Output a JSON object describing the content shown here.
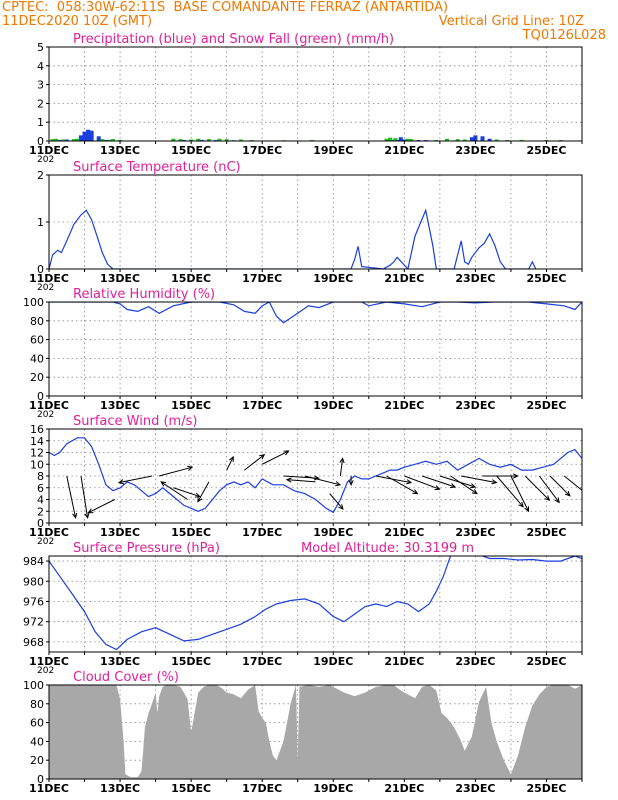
{
  "header": {
    "line1_left": "CPTEC:  058:30W-62:11S  BASE COMANDANTE FERRAZ (ANTARTIDA)",
    "line2_left": "11DEC2020 10Z (GMT)",
    "line2_right": "Vertical Grid Line: 10Z",
    "line3_right": "TQ0126L028"
  },
  "colors": {
    "header_orange": "#f07800",
    "title_magenta": "#e0209a",
    "series_blue": "#1a3fe0",
    "snow_green": "#19c019",
    "cloud_gray": "#a8a8a8",
    "grid": "#888888"
  },
  "chart_data": [
    {
      "id": "precip",
      "type": "bar",
      "title": "Precipitation (blue) and Snow Fall (green) (mm/h)",
      "ylim": [
        0,
        5
      ],
      "yticks": [
        0,
        1,
        2,
        3,
        4,
        5
      ],
      "xticks": [
        "11DEC",
        "13DEC",
        "15DEC",
        "17DEC",
        "19DEC",
        "21DEC",
        "23DEC",
        "25DEC"
      ],
      "x_first_label_extra": "202",
      "grid": true,
      "series": [
        {
          "name": "Precipitation",
          "color": "blue",
          "x": [
            0.3,
            0.5,
            0.9,
            1.0,
            1.1,
            1.2,
            1.4,
            1.6,
            3.8,
            4.3,
            4.7,
            5.2,
            9.7,
            9.8,
            9.9,
            10.0,
            10.4,
            10.6,
            11.9,
            12.0,
            12.2,
            12.4
          ],
          "values": [
            0.05,
            0.08,
            0.3,
            0.5,
            0.6,
            0.55,
            0.25,
            0.05,
            0.05,
            0.06,
            0.05,
            0.04,
            0.05,
            0.06,
            0.2,
            0.08,
            0.05,
            0.05,
            0.2,
            0.3,
            0.25,
            0.12
          ]
        },
        {
          "name": "Snow Fall",
          "color": "green",
          "x": [
            0.1,
            0.2,
            0.4,
            0.7,
            0.8,
            1.5,
            1.7,
            1.8,
            2.0,
            3.5,
            3.7,
            4.0,
            4.2,
            4.5,
            4.8,
            5.0,
            5.4,
            5.7,
            6.6,
            7.4,
            9.5,
            9.6,
            9.75,
            10.1,
            10.2,
            10.9,
            11.2,
            11.5,
            11.7,
            12.6,
            12.9,
            13.3,
            14.0,
            14.4
          ],
          "values": [
            0.1,
            0.12,
            0.08,
            0.1,
            0.12,
            0.1,
            0.06,
            0.1,
            0.06,
            0.12,
            0.1,
            0.08,
            0.12,
            0.1,
            0.12,
            0.1,
            0.08,
            0.05,
            0.04,
            0.05,
            0.12,
            0.18,
            0.15,
            0.12,
            0.1,
            0.05,
            0.12,
            0.1,
            0.08,
            0.08,
            0.05,
            0.06,
            0.05,
            0.05
          ]
        }
      ]
    },
    {
      "id": "temperature",
      "type": "line",
      "title": "Surface Temperature (nC)",
      "ylim": [
        0,
        2
      ],
      "yticks": [
        0,
        1,
        2
      ],
      "xticks": [
        "11DEC",
        "13DEC",
        "15DEC",
        "17DEC",
        "19DEC",
        "21DEC",
        "23DEC",
        "25DEC"
      ],
      "x_first_label_extra": "202",
      "grid": true,
      "series": [
        {
          "name": "Surface Temperature",
          "x": [
            0.0,
            0.1,
            0.25,
            0.35,
            0.5,
            0.7,
            0.9,
            1.05,
            1.2,
            1.35,
            1.5,
            1.65,
            1.8,
            8.5,
            8.6,
            8.7,
            8.8,
            9.4,
            9.6,
            9.7,
            9.8,
            10.1,
            10.3,
            10.6,
            10.8,
            10.9,
            11.0,
            11.1,
            11.4,
            11.6,
            11.7,
            11.8,
            11.9,
            12.1,
            12.25,
            12.4,
            12.55,
            12.7,
            12.85,
            13.5,
            13.6,
            13.7
          ],
          "y": [
            0.0,
            0.3,
            0.4,
            0.35,
            0.6,
            0.95,
            1.15,
            1.25,
            1.05,
            0.7,
            0.35,
            0.1,
            0.0,
            0.0,
            0.2,
            0.48,
            0.05,
            0.0,
            0.08,
            0.15,
            0.25,
            0.0,
            0.7,
            1.25,
            0.5,
            0.0,
            0.0,
            0.0,
            0.0,
            0.6,
            0.15,
            0.1,
            0.25,
            0.45,
            0.55,
            0.75,
            0.5,
            0.15,
            0.0,
            0.0,
            0.15,
            0.0
          ]
        }
      ]
    },
    {
      "id": "humidity",
      "type": "line",
      "title": "Relative Humidity (%)",
      "ylim": [
        0,
        100
      ],
      "yticks": [
        0,
        20,
        40,
        60,
        80,
        100
      ],
      "xticks": [
        "11DEC",
        "13DEC",
        "15DEC",
        "17DEC",
        "19DEC",
        "21DEC",
        "23DEC",
        "25DEC"
      ],
      "x_first_label_extra": "202",
      "grid": true,
      "series": [
        {
          "name": "Relative Humidity",
          "x": [
            0,
            1.8,
            2.0,
            2.2,
            2.5,
            2.8,
            3.1,
            3.5,
            4.0,
            4.8,
            5.2,
            5.5,
            5.8,
            6.0,
            6.2,
            6.4,
            6.6,
            7.0,
            7.3,
            7.6,
            8.0,
            8.5,
            8.8,
            9.0,
            9.5,
            10.0,
            10.5,
            11.0,
            11.5,
            12.0,
            12.5,
            13.0,
            13.5,
            14.0,
            14.5,
            14.8,
            15.0
          ],
          "y": [
            100,
            100,
            98,
            92,
            90,
            95,
            88,
            96,
            100,
            100,
            97,
            90,
            88,
            96,
            100,
            85,
            78,
            88,
            96,
            94,
            100,
            100,
            100,
            96,
            100,
            98,
            95,
            100,
            100,
            99,
            100,
            100,
            100,
            98,
            96,
            92,
            100
          ]
        }
      ]
    },
    {
      "id": "wind",
      "type": "line",
      "title": "Surface Wind (m/s)",
      "ylim": [
        0,
        16
      ],
      "yticks": [
        0,
        2,
        4,
        6,
        8,
        10,
        12,
        14,
        16
      ],
      "xticks": [
        "11DEC",
        "13DEC",
        "15DEC",
        "17DEC",
        "19DEC",
        "21DEC",
        "23DEC",
        "25DEC"
      ],
      "x_first_label_extra": "202",
      "grid": true,
      "series": [
        {
          "name": "Wind speed",
          "x": [
            0,
            0.15,
            0.3,
            0.5,
            0.8,
            1.0,
            1.2,
            1.4,
            1.6,
            1.8,
            2.0,
            2.2,
            2.4,
            2.6,
            2.8,
            3.0,
            3.2,
            3.4,
            3.6,
            3.8,
            4.0,
            4.2,
            4.4,
            4.6,
            4.8,
            5.0,
            5.2,
            5.4,
            5.6,
            5.8,
            6.0,
            6.3,
            6.6,
            6.9,
            7.2,
            7.5,
            7.8,
            8.0,
            8.2,
            8.4,
            8.6,
            8.8,
            9.0,
            9.2,
            9.4,
            9.6,
            9.8,
            10.0,
            10.3,
            10.6,
            10.9,
            11.2,
            11.5,
            11.8,
            12.1,
            12.4,
            12.7,
            13.0,
            13.3,
            13.6,
            13.9,
            14.2,
            14.4,
            14.6,
            14.8,
            15.0
          ],
          "y": [
            12,
            11.5,
            12,
            13.5,
            14.5,
            14.5,
            13,
            10,
            6.5,
            5.5,
            6,
            7,
            6.5,
            5.5,
            4.5,
            5,
            6,
            5,
            4,
            3,
            2.5,
            2,
            2.5,
            4,
            5.5,
            6.5,
            7,
            6.5,
            7,
            6,
            7.5,
            6.5,
            6.5,
            5.5,
            5,
            4,
            2.5,
            1.8,
            4,
            7,
            8,
            7.5,
            7.5,
            8,
            8.5,
            9,
            9,
            9.5,
            10,
            10.5,
            10,
            10.5,
            9,
            10,
            11,
            10,
            9.5,
            10,
            9,
            9,
            9.5,
            10,
            11,
            12,
            12.5,
            11
          ]
        },
        {
          "name": "Wind vectors",
          "type": "vectors",
          "u": [
            0.4,
            0.3,
            -1.2,
            -1.5,
            1.5,
            1.2,
            -1.2,
            -0.5,
            0.3,
            0.9,
            1.2,
            1.6,
            1.6,
            -1.3,
            0.6,
            0.1,
            0.0,
            1.6,
            1.4,
            1.6,
            1.5,
            1.6,
            1.2,
            1.6,
            1.6,
            1.2,
            0.8,
            1.1,
            0.9,
            0.9,
            1.0
          ],
          "v": [
            -1.9,
            -1.9,
            -0.6,
            -0.3,
            0.4,
            -0.4,
            0.8,
            -0.9,
            0.6,
            0.7,
            0.6,
            -0.1,
            -0.4,
            0.1,
            -0.7,
            0.8,
            -0.4,
            -0.3,
            -0.8,
            -0.6,
            -0.5,
            -0.5,
            -0.8,
            -0.3,
            0.0,
            -1.4,
            -1.6,
            -1.1,
            -1.2,
            -0.9,
            -0.8
          ],
          "x": [
            0.5,
            0.9,
            1.85,
            2.9,
            3.1,
            3.5,
            3.9,
            4.5,
            5.0,
            5.5,
            6.0,
            6.6,
            7.2,
            7.5,
            7.9,
            8.2,
            8.5,
            9.2,
            9.5,
            10.0,
            10.5,
            11.0,
            11.3,
            11.6,
            12.2,
            12.6,
            13.0,
            13.4,
            13.8,
            14.1,
            14.5
          ],
          "y": [
            8,
            8,
            4,
            8,
            8,
            6,
            4,
            7,
            9,
            9,
            10,
            8,
            8,
            7,
            5,
            8,
            8,
            8,
            8,
            8,
            8,
            8,
            8,
            8,
            8,
            8,
            8,
            8,
            8,
            8,
            8
          ]
        }
      ]
    },
    {
      "id": "pressure",
      "type": "line",
      "title": "Surface Pressure (hPa)",
      "annotation": "Model Altitude: 30.3199 m",
      "ylim": [
        966,
        985
      ],
      "yticks": [
        968,
        972,
        976,
        980,
        984
      ],
      "xticks": [
        "11DEC",
        "13DEC",
        "15DEC",
        "17DEC",
        "19DEC",
        "21DEC",
        "23DEC",
        "25DEC"
      ],
      "x_first_label_extra": "202",
      "grid": true,
      "series": [
        {
          "name": "Surface Pressure",
          "x": [
            0,
            0.3,
            0.7,
            1.0,
            1.3,
            1.6,
            1.9,
            2.2,
            2.6,
            3.0,
            3.4,
            3.8,
            4.2,
            4.6,
            5.0,
            5.4,
            5.8,
            6.1,
            6.4,
            6.8,
            7.2,
            7.6,
            8.0,
            8.3,
            8.6,
            8.9,
            9.2,
            9.5,
            9.8,
            10.1,
            10.4,
            10.7,
            10.9,
            11.1,
            11.3,
            11.6,
            12.0,
            12.4,
            12.8,
            13.2,
            13.6,
            14.0,
            14.4,
            14.8,
            15.0
          ],
          "y": [
            984,
            981,
            977,
            974,
            970,
            967.5,
            966.5,
            968.5,
            970,
            970.8,
            969.5,
            968.2,
            968.5,
            969.5,
            970.5,
            971.5,
            973,
            974.5,
            975.5,
            976.2,
            976.5,
            975.5,
            973,
            972,
            973.5,
            975,
            975.5,
            975,
            976,
            975.5,
            974,
            975.5,
            978,
            981,
            985,
            986,
            985.5,
            984.5,
            984.5,
            984.2,
            984.3,
            984,
            984,
            985,
            984.5
          ]
        }
      ]
    },
    {
      "id": "cloud",
      "type": "area",
      "title": "Cloud Cover (%)",
      "ylim": [
        0,
        100
      ],
      "yticks": [
        0,
        20,
        40,
        60,
        80,
        100
      ],
      "xticks": [
        "11DEC",
        "13DEC",
        "15DEC",
        "17DEC",
        "19DEC",
        "21DEC",
        "23DEC",
        "25DEC"
      ],
      "grid": true,
      "series": [
        {
          "name": "Cloud Cover",
          "x": [
            0,
            1.9,
            2.0,
            2.1,
            2.15,
            2.3,
            2.5,
            2.6,
            2.65,
            2.7,
            2.8,
            2.9,
            3.0,
            3.05,
            3.1,
            3.2,
            3.3,
            3.5,
            3.7,
            3.9,
            4.0,
            4.05,
            4.2,
            4.35,
            4.5,
            4.7,
            4.85,
            5.0,
            5.2,
            5.4,
            5.6,
            5.8,
            5.9,
            6.0,
            6.1,
            6.2,
            6.3,
            6.4,
            6.6,
            6.8,
            6.95,
            7.0,
            7.05,
            7.3,
            7.6,
            7.9,
            8.1,
            8.3,
            8.6,
            8.9,
            9.2,
            9.5,
            9.7,
            9.9,
            10.1,
            10.3,
            10.5,
            10.7,
            10.9,
            11.05,
            11.2,
            11.4,
            11.6,
            11.7,
            11.9,
            12.1,
            12.3,
            12.45,
            12.6,
            12.8,
            13.0,
            13.2,
            13.4,
            13.6,
            13.8,
            14.0,
            14.2,
            14.4,
            14.6,
            14.8,
            15.0
          ],
          "y": [
            100,
            100,
            85,
            40,
            5,
            2,
            2,
            8,
            30,
            55,
            70,
            80,
            92,
            70,
            88,
            98,
            100,
            100,
            98,
            85,
            50,
            60,
            92,
            98,
            100,
            100,
            97,
            92,
            90,
            86,
            95,
            100,
            72,
            65,
            60,
            40,
            25,
            20,
            40,
            80,
            100,
            20,
            98,
            100,
            98,
            100,
            96,
            92,
            88,
            92,
            98,
            100,
            100,
            94,
            90,
            86,
            98,
            100,
            94,
            70,
            65,
            55,
            40,
            30,
            45,
            82,
            98,
            60,
            40,
            20,
            5,
            25,
            55,
            78,
            90,
            98,
            100,
            100,
            100,
            96,
            100
          ]
        }
      ]
    }
  ]
}
